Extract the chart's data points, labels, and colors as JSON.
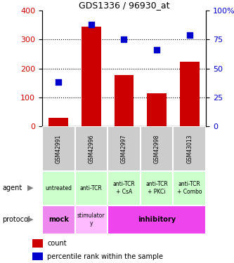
{
  "title": "GDS1336 / 96930_at",
  "samples": [
    "GSM42991",
    "GSM42996",
    "GSM42997",
    "GSM42998",
    "GSM43013"
  ],
  "counts": [
    28,
    345,
    178,
    115,
    222
  ],
  "percentile_ranks": [
    38,
    88,
    75,
    66,
    79
  ],
  "left_ylim": [
    0,
    400
  ],
  "left_yticks": [
    0,
    100,
    200,
    300,
    400
  ],
  "right_yticks": [
    0,
    25,
    50,
    75,
    100
  ],
  "right_yticklabels": [
    "0",
    "25",
    "50",
    "75",
    "100%"
  ],
  "agent_labels": [
    "untreated",
    "anti-TCR",
    "anti-TCR\n+ CsA",
    "anti-TCR\n+ PKCi",
    "anti-TCR\n+ Combo"
  ],
  "protocol_mock": "mock",
  "protocol_stim": "stimulator\ny",
  "protocol_inhib": "inhibitory",
  "agent_bg": "#ccffcc",
  "protocol_mock_bg": "#ee88ee",
  "protocol_stim_bg": "#ffbbff",
  "protocol_inhib_bg": "#ee44ee",
  "sample_bg": "#cccccc",
  "bar_color": "#cc0000",
  "dot_color": "#0000cc",
  "count_label_color": "#cc0000",
  "percentile_label_color": "#0000cc",
  "gridline_color": "black"
}
